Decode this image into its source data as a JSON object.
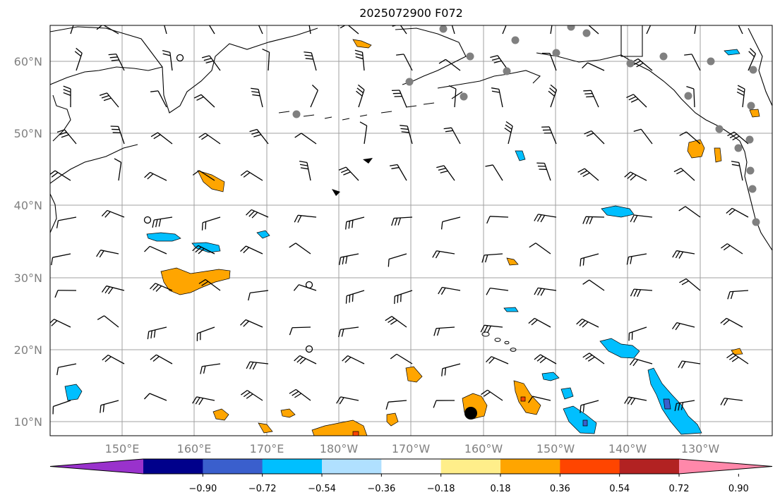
{
  "title": "2025072900 F072",
  "map": {
    "lat_labels": [
      "60°N",
      "50°N",
      "40°N",
      "30°N",
      "20°N",
      "10°N"
    ],
    "lon_labels": [
      "150°E",
      "160°E",
      "170°E",
      "180°W",
      "170°W",
      "160°W",
      "150°W",
      "140°W",
      "130°W"
    ],
    "axis_color": "#808080",
    "grid_color": "#a0a0a0",
    "marker_colors": {
      "station": "#808080",
      "center": "#000000"
    }
  },
  "colorbar": {
    "tick_labels": [
      "−0.90",
      "−0.72",
      "−0.54",
      "−0.36",
      "−0.18",
      "0.18",
      "0.36",
      "0.54",
      "0.72",
      "0.90"
    ],
    "colors": [
      "#9932cc",
      "#00008b",
      "#3a5fcd",
      "#00bfff",
      "#b0e0ff",
      "#ffffff",
      "#ffee8a",
      "#ffa500",
      "#ff4500",
      "#b22222",
      "#ff88aa"
    ],
    "extend": "both"
  }
}
